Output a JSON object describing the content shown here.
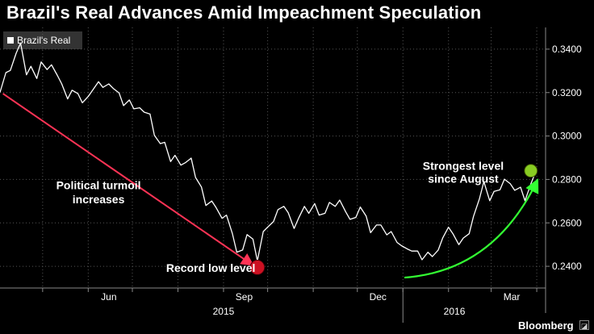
{
  "title": "Brazil's Real Advances Amid Impeachment Speculation",
  "legend": "Brazil's Real",
  "brand": "Bloomberg",
  "brand_icon": "graph-icon",
  "colors": {
    "series": "#ffffff",
    "arrow_down": "#ff3355",
    "arrow_up": "#33ff33",
    "low_marker": "#cc1122",
    "high_marker": "#88cc22",
    "grid": "#555555"
  },
  "chart_data": {
    "type": "line",
    "title": "Brazil's Real Advances Amid Impeachment Speculation",
    "ylim": [
      0.23,
      0.35
    ],
    "y_ticks": [
      0.24,
      0.26,
      0.28,
      0.3,
      0.32,
      0.34
    ],
    "y_tick_labels": [
      "0.2400",
      "0.2600",
      "0.2800",
      "0.3000",
      "0.3200",
      "0.3400"
    ],
    "x_tick_labels": [
      "Jun",
      "Sep",
      "Dec",
      "Mar"
    ],
    "year_labels": [
      "2015",
      "2016"
    ],
    "series": [
      {
        "name": "Brazil's Real",
        "x": [
          "2015-04-02",
          "2015-04-06",
          "2015-04-09",
          "2015-04-13",
          "2015-04-16",
          "2015-04-20",
          "2015-04-23",
          "2015-04-27",
          "2015-04-30",
          "2015-05-04",
          "2015-05-07",
          "2015-05-11",
          "2015-05-14",
          "2015-05-18",
          "2015-05-21",
          "2015-05-25",
          "2015-05-28",
          "2015-06-01",
          "2015-06-04",
          "2015-06-08",
          "2015-06-11",
          "2015-06-15",
          "2015-06-18",
          "2015-06-22",
          "2015-06-25",
          "2015-06-29",
          "2015-07-02",
          "2015-07-06",
          "2015-07-09",
          "2015-07-13",
          "2015-07-16",
          "2015-07-20",
          "2015-07-23",
          "2015-07-27",
          "2015-07-30",
          "2015-08-03",
          "2015-08-06",
          "2015-08-10",
          "2015-08-13",
          "2015-08-17",
          "2015-08-20",
          "2015-08-24",
          "2015-08-27",
          "2015-08-31",
          "2015-09-03",
          "2015-09-07",
          "2015-09-10",
          "2015-09-14",
          "2015-09-17",
          "2015-09-21",
          "2015-09-24",
          "2015-09-28",
          "2015-10-01",
          "2015-10-05",
          "2015-10-08",
          "2015-10-12",
          "2015-10-15",
          "2015-10-19",
          "2015-10-22",
          "2015-10-26",
          "2015-10-29",
          "2015-11-02",
          "2015-11-05",
          "2015-11-09",
          "2015-11-12",
          "2015-11-16",
          "2015-11-19",
          "2015-11-23",
          "2015-11-26",
          "2015-11-30",
          "2015-12-03",
          "2015-12-07",
          "2015-12-10",
          "2015-12-14",
          "2015-12-17",
          "2015-12-21",
          "2015-12-24",
          "2015-12-28",
          "2015-12-31",
          "2016-01-04",
          "2016-01-07",
          "2016-01-11",
          "2016-01-14",
          "2016-01-18",
          "2016-01-21",
          "2016-01-25",
          "2016-01-28",
          "2016-02-01",
          "2016-02-04",
          "2016-02-08",
          "2016-02-11",
          "2016-02-15",
          "2016-02-18",
          "2016-02-22",
          "2016-02-25",
          "2016-02-29",
          "2016-03-03",
          "2016-03-07",
          "2016-03-10",
          "2016-03-14",
          "2016-03-17",
          "2016-03-21",
          "2016-03-24",
          "2016-03-28",
          "2016-03-31"
        ],
        "values": [
          0.3201,
          0.3292,
          0.3302,
          0.3381,
          0.3428,
          0.3282,
          0.3321,
          0.3265,
          0.3341,
          0.3306,
          0.3328,
          0.3279,
          0.324,
          0.3171,
          0.3211,
          0.3195,
          0.3153,
          0.3182,
          0.3211,
          0.325,
          0.3224,
          0.324,
          0.3219,
          0.3198,
          0.314,
          0.3166,
          0.3125,
          0.313,
          0.311,
          0.3101,
          0.3003,
          0.2965,
          0.2971,
          0.2882,
          0.2911,
          0.2866,
          0.2877,
          0.2898,
          0.2809,
          0.2765,
          0.268,
          0.2701,
          0.267,
          0.2621,
          0.2636,
          0.2551,
          0.2465,
          0.2475,
          0.2546,
          0.2525,
          0.2425,
          0.256,
          0.258,
          0.2606,
          0.2661,
          0.2676,
          0.2647,
          0.2574,
          0.2621,
          0.2676,
          0.2644,
          0.2689,
          0.2636,
          0.2644,
          0.2694,
          0.2676,
          0.2705,
          0.2652,
          0.2616,
          0.2625,
          0.2673,
          0.2631,
          0.2555,
          0.259,
          0.259,
          0.2545,
          0.256,
          0.251,
          0.2495,
          0.248,
          0.247,
          0.247,
          0.243,
          0.2465,
          0.2445,
          0.2475,
          0.253,
          0.258,
          0.255,
          0.25,
          0.253,
          0.255,
          0.263,
          0.271,
          0.279,
          0.2702,
          0.2745,
          0.2752,
          0.2801,
          0.278,
          0.275,
          0.2764,
          0.2702,
          0.278,
          0.283
        ]
      }
    ],
    "annotations": [
      {
        "text": "Political turmoil",
        "x": "2015-06-08",
        "y": 0.2755
      },
      {
        "text": "increases",
        "x": "2015-06-08",
        "y": 0.269
      },
      {
        "text": "Record low level",
        "x": "2015-07-24",
        "y": 0.2375
      },
      {
        "text": "Strongest level",
        "x": "2016-02-11",
        "y": 0.2845
      },
      {
        "text": "since August",
        "x": "2016-02-11",
        "y": 0.2785
      }
    ],
    "markers": [
      {
        "label": "record-low",
        "x": "2015-09-24",
        "y": 0.2395
      },
      {
        "label": "strongest",
        "x": "2016-03-28",
        "y": 0.284
      }
    ]
  }
}
